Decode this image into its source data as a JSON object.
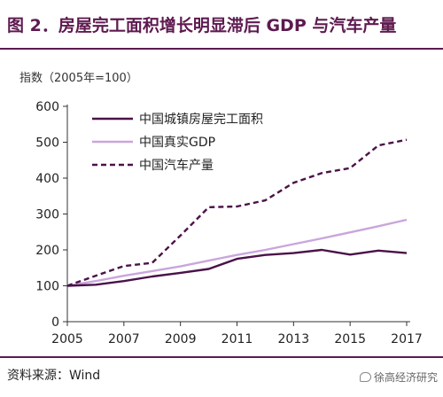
{
  "header": {
    "title": "图 2．房屋完工面积增长明显滞后 GDP 与汽车产量"
  },
  "footer": {
    "source": "资料来源：Wind",
    "watermark": "徐高经济研究",
    "watermark_icon": "wechat-icon"
  },
  "chart_data": {
    "type": "line",
    "title": "图 2．房屋完工面积增长明显滞后 GDP 与汽车产量",
    "ylabel": "指数（2005年=100）",
    "xlabel": "",
    "ylim": [
      0,
      600
    ],
    "yticks": [
      0,
      100,
      200,
      300,
      400,
      500,
      600
    ],
    "xlim": [
      2005,
      2017
    ],
    "xticks": [
      2005,
      2007,
      2009,
      2011,
      2013,
      2015,
      2017
    ],
    "grid": false,
    "legend_position": "top-left",
    "x": [
      2005,
      2006,
      2007,
      2008,
      2009,
      2010,
      2011,
      2012,
      2013,
      2014,
      2015,
      2016,
      2017
    ],
    "series": [
      {
        "name": "中国城镇房屋完工面积",
        "style": "solid",
        "color": "#4a1248",
        "values": [
          100,
          103,
          113,
          126,
          136,
          147,
          175,
          186,
          191,
          200,
          187,
          198,
          191
        ]
      },
      {
        "name": "中国真实GDP",
        "style": "solid",
        "color": "#c9a6dc",
        "values": [
          100,
          113,
          128,
          141,
          154,
          170,
          186,
          200,
          216,
          232,
          249,
          266,
          284
        ]
      },
      {
        "name": "中国汽车产量",
        "style": "dashed",
        "color": "#4a1248",
        "values": [
          100,
          128,
          155,
          164,
          240,
          319,
          321,
          338,
          387,
          414,
          428,
          491,
          507
        ]
      }
    ]
  }
}
